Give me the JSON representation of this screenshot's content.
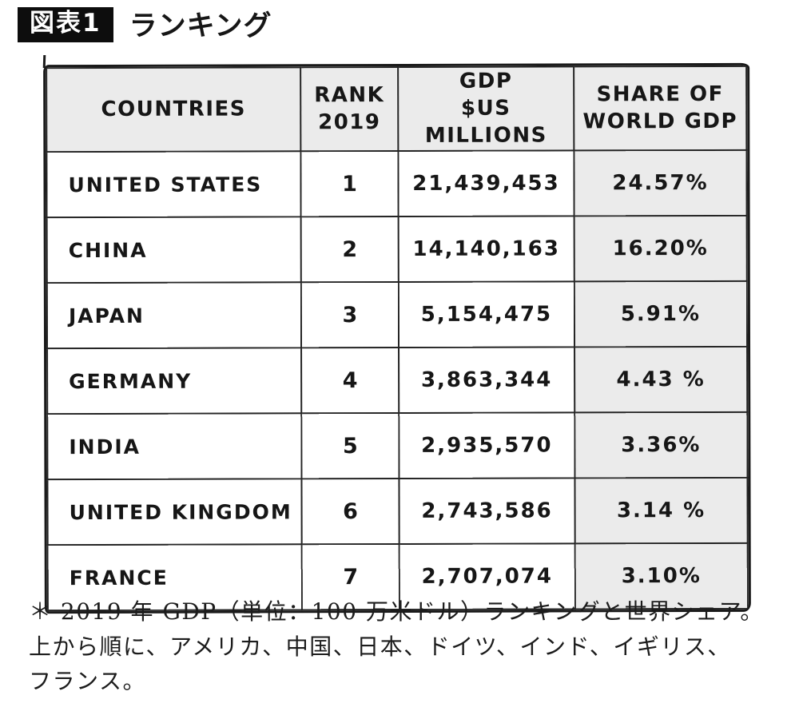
{
  "page": {
    "background": "#ffffff",
    "ink": "#161616",
    "cell_gray": "#ebebeb"
  },
  "figure": {
    "badge_label": "図表1",
    "title": "ランキング"
  },
  "table": {
    "headers": {
      "countries": "COUNTRIES",
      "rank": "RANK\n2019",
      "gdp": "GDP\n$US MILLIONS",
      "share": "SHARE OF\nWORLD GDP"
    },
    "rows": [
      {
        "country": "UNITED STATES",
        "rank": "1",
        "gdp": "21,439,453",
        "share": "24.57%"
      },
      {
        "country": "CHINA",
        "rank": "2",
        "gdp": "14,140,163",
        "share": "16.20%"
      },
      {
        "country": "JAPAN",
        "rank": "3",
        "gdp": "5,154,475",
        "share": "5.91%"
      },
      {
        "country": "GERMANY",
        "rank": "4",
        "gdp": "3,863,344",
        "share": "4.43 %"
      },
      {
        "country": "INDIA",
        "rank": "5",
        "gdp": "2,935,570",
        "share": "3.36%"
      },
      {
        "country": "UNITED KINGDOM",
        "rank": "6",
        "gdp": "2,743,586",
        "share": "3.14 %"
      },
      {
        "country": "FRANCE",
        "rank": "7",
        "gdp": "2,707,074",
        "share": "3.10%"
      }
    ]
  },
  "note": {
    "line1": "＊ 2019 年 GDP（単位：100 万米ドル）ランキングと世界シェア。",
    "line2": "上から順に、アメリカ、中国、日本、ドイツ、インド、イギリス、",
    "line3": "フランス。"
  }
}
